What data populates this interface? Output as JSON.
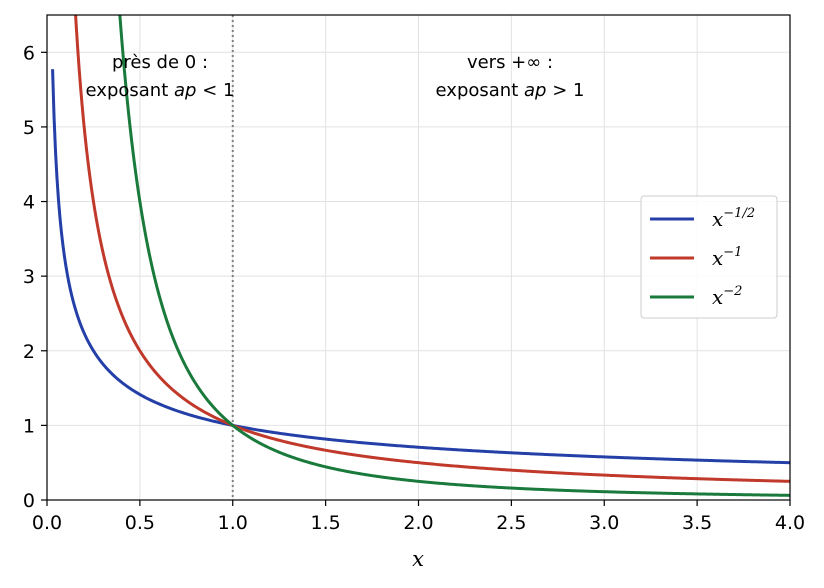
{
  "chart_data": {
    "type": "line",
    "xlabel": "x",
    "ylabel": "",
    "xlim": [
      0.0,
      4.0
    ],
    "ylim": [
      0,
      6.5
    ],
    "xticks": [
      0.0,
      0.5,
      1.0,
      1.5,
      2.0,
      2.5,
      3.0,
      3.5,
      4.0
    ],
    "xtick_labels": [
      "0.0",
      "0.5",
      "1.0",
      "1.5",
      "2.0",
      "2.5",
      "3.0",
      "3.5",
      "4.0"
    ],
    "yticks": [
      0,
      1,
      2,
      3,
      4,
      5,
      6
    ],
    "ytick_labels": [
      "0",
      "1",
      "2",
      "3",
      "4",
      "5",
      "6"
    ],
    "grid": true,
    "legend_position": "right",
    "vline": {
      "x": 1.0,
      "style": "dotted",
      "color": "#808080"
    },
    "series": [
      {
        "name": "x^{-1/2}",
        "base": "x",
        "exponent_label": "−1/2",
        "exponent": -0.5,
        "color": "#2440a8",
        "x": [
          0.03,
          0.05,
          0.1,
          0.2,
          0.5,
          1.0,
          1.5,
          2.0,
          2.5,
          3.0,
          3.5,
          4.0
        ],
        "y": [
          5.77,
          4.47,
          3.16,
          2.24,
          1.41,
          1.0,
          0.82,
          0.71,
          0.63,
          0.58,
          0.53,
          0.5
        ]
      },
      {
        "name": "x^{-1}",
        "base": "x",
        "exponent_label": "−1",
        "exponent": -1,
        "color": "#c0392b",
        "x": [
          0.15,
          0.2,
          0.3,
          0.5,
          0.75,
          1.0,
          1.5,
          2.0,
          2.5,
          3.0,
          3.5,
          4.0
        ],
        "y": [
          6.67,
          5.0,
          3.33,
          2.0,
          1.33,
          1.0,
          0.67,
          0.5,
          0.4,
          0.33,
          0.29,
          0.25
        ]
      },
      {
        "name": "x^{-2}",
        "base": "x",
        "exponent_label": "−2",
        "exponent": -2,
        "color": "#1a7a3c",
        "x": [
          0.39,
          0.45,
          0.5,
          0.6,
          0.75,
          1.0,
          1.5,
          2.0,
          2.5,
          3.0,
          3.5,
          4.0
        ],
        "y": [
          6.57,
          4.94,
          4.0,
          2.78,
          1.78,
          1.0,
          0.44,
          0.25,
          0.16,
          0.11,
          0.08,
          0.06
        ]
      }
    ],
    "annotations": [
      {
        "id": "left",
        "line1": "près de 0 :",
        "line2_prefix": "exposant ",
        "line2_var": "ap",
        "line2_rel": " < 1"
      },
      {
        "id": "right",
        "line1": "vers +∞ :",
        "line2_prefix": "exposant ",
        "line2_var": "ap",
        "line2_rel": " > 1"
      }
    ]
  }
}
